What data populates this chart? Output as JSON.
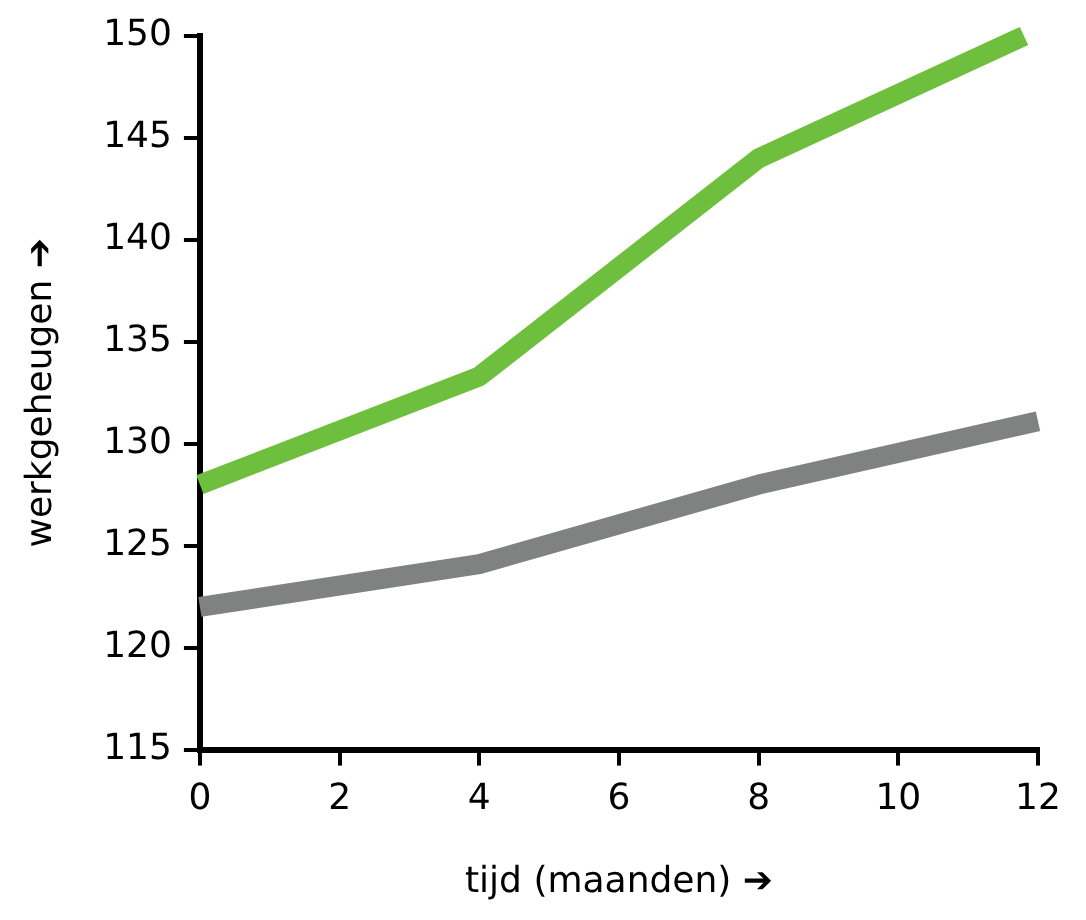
{
  "chart_data": {
    "type": "line",
    "xlabel": "tijd (maanden) ➔",
    "ylabel": "werkgeheugen ➔",
    "xlim": [
      0,
      12
    ],
    "xticks": [
      0,
      2,
      4,
      6,
      8,
      10,
      12
    ],
    "ylim": [
      115,
      150
    ],
    "yticks": [
      115,
      120,
      125,
      130,
      135,
      140,
      145,
      150
    ],
    "grid": false,
    "legend": false,
    "marker": "none",
    "line_style": "solid",
    "series": [
      {
        "color": "#6fbf3f",
        "x": [
          0,
          4,
          8,
          11.8
        ],
        "values": [
          128,
          133.3,
          144,
          150
        ]
      },
      {
        "color": "#808282",
        "x": [
          0,
          4,
          8,
          12
        ],
        "values": [
          122,
          124.1,
          128,
          131.1
        ]
      }
    ]
  }
}
